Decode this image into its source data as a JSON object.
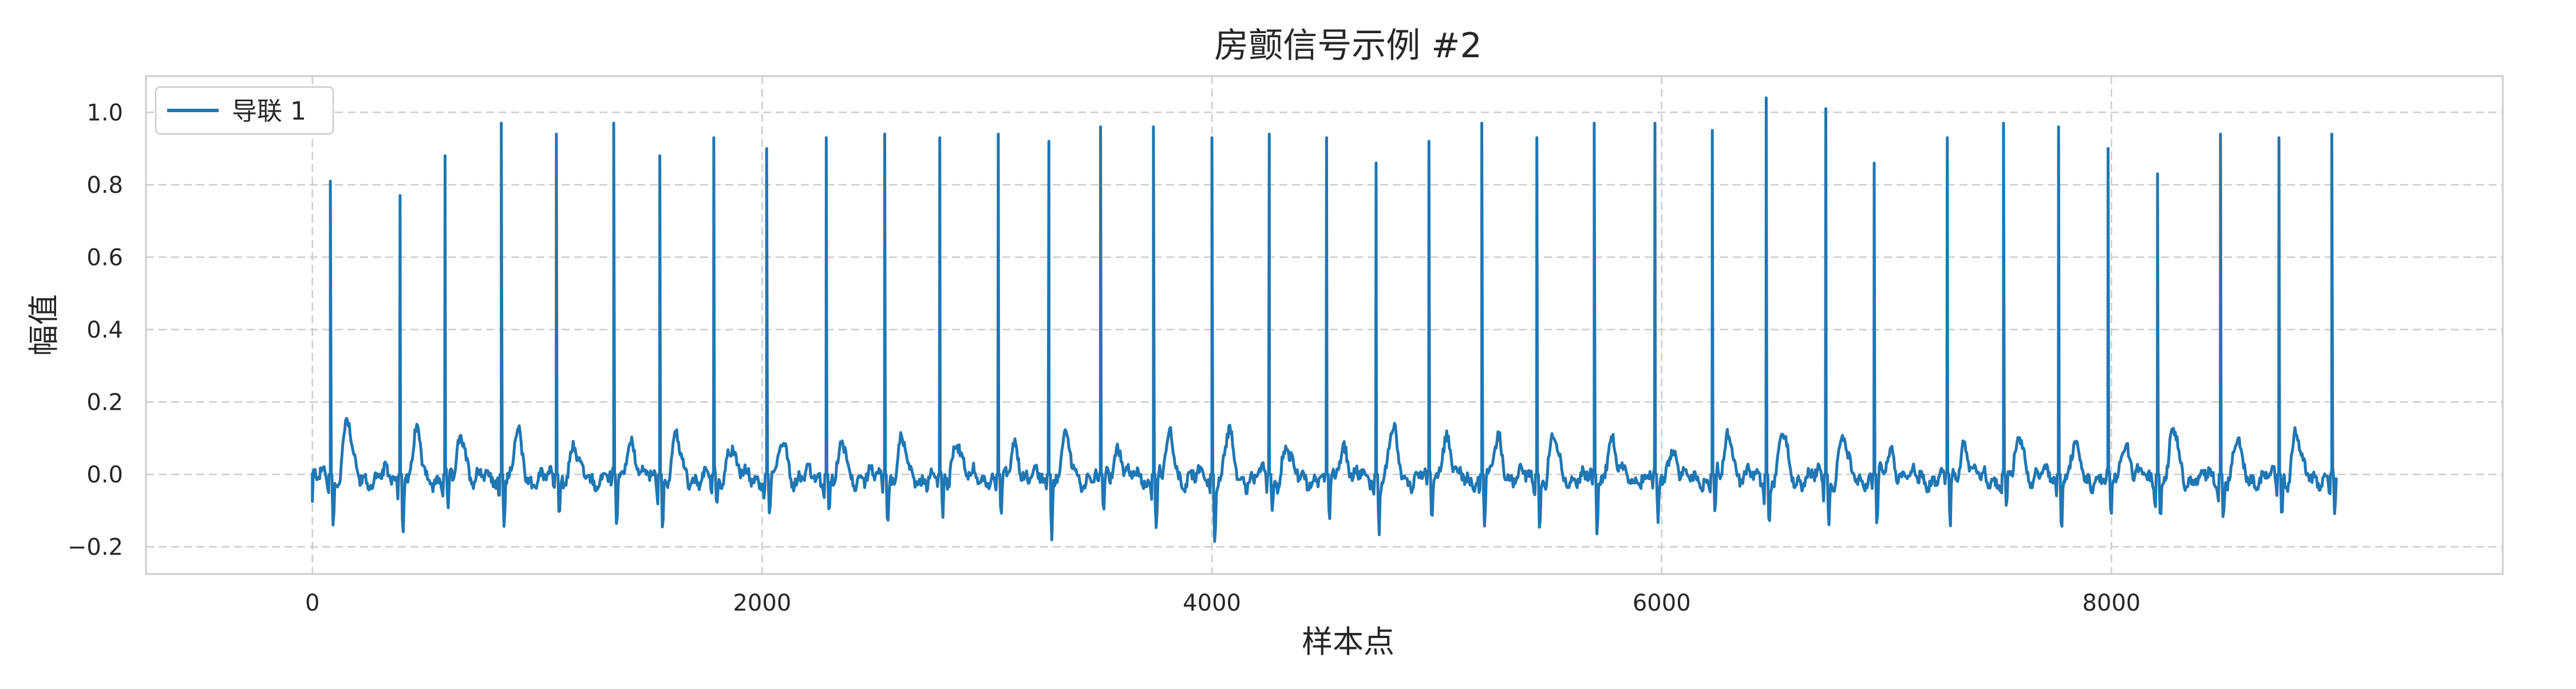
{
  "chart_data": {
    "type": "line",
    "title": "房颤信号示例 #2",
    "xlabel": "样本点",
    "ylabel": "幅值",
    "xlim": [
      -740,
      9740
    ],
    "ylim": [
      -0.275,
      1.1
    ],
    "xticks": [
      0,
      2000,
      4000,
      6000,
      8000
    ],
    "yticks": [
      -0.2,
      0.0,
      0.2,
      0.4,
      0.6,
      0.8,
      1.0
    ],
    "xtick_labels": [
      "0",
      "2000",
      "4000",
      "6000",
      "8000"
    ],
    "ytick_labels": [
      "−0.2",
      "0.0",
      "0.2",
      "0.4",
      "0.6",
      "0.8",
      "1.0"
    ],
    "grid": true,
    "grid_style": "dashed",
    "legend_position": "top-left",
    "series": [
      {
        "name": "导联 1",
        "color": "#1f77b4",
        "x_range": [
          0,
          9000
        ],
        "r_peaks": [
          {
            "x": 80,
            "amp": 0.81
          },
          {
            "x": 390,
            "amp": 0.77
          },
          {
            "x": 590,
            "amp": 0.88
          },
          {
            "x": 840,
            "amp": 0.97
          },
          {
            "x": 1085,
            "amp": 0.94
          },
          {
            "x": 1340,
            "amp": 0.97
          },
          {
            "x": 1545,
            "amp": 0.88
          },
          {
            "x": 1785,
            "amp": 0.93
          },
          {
            "x": 2020,
            "amp": 0.9
          },
          {
            "x": 2285,
            "amp": 0.93
          },
          {
            "x": 2545,
            "amp": 0.94
          },
          {
            "x": 2790,
            "amp": 0.93
          },
          {
            "x": 3050,
            "amp": 0.94
          },
          {
            "x": 3275,
            "amp": 0.92
          },
          {
            "x": 3505,
            "amp": 0.96
          },
          {
            "x": 3740,
            "amp": 0.96
          },
          {
            "x": 4000,
            "amp": 0.93
          },
          {
            "x": 4255,
            "amp": 0.94
          },
          {
            "x": 4510,
            "amp": 0.93
          },
          {
            "x": 4730,
            "amp": 0.86
          },
          {
            "x": 4965,
            "amp": 0.92
          },
          {
            "x": 5200,
            "amp": 0.97
          },
          {
            "x": 5445,
            "amp": 0.93
          },
          {
            "x": 5700,
            "amp": 0.97
          },
          {
            "x": 5970,
            "amp": 0.97
          },
          {
            "x": 6225,
            "amp": 0.95
          },
          {
            "x": 6465,
            "amp": 1.04
          },
          {
            "x": 6730,
            "amp": 1.01
          },
          {
            "x": 6945,
            "amp": 0.86
          },
          {
            "x": 7270,
            "amp": 0.93
          },
          {
            "x": 7520,
            "amp": 0.97
          },
          {
            "x": 7765,
            "amp": 0.96
          },
          {
            "x": 7985,
            "amp": 0.9
          },
          {
            "x": 8205,
            "amp": 0.83
          },
          {
            "x": 8485,
            "amp": 0.94
          },
          {
            "x": 8745,
            "amp": 0.93
          },
          {
            "x": 8980,
            "amp": 0.94
          }
        ],
        "trough_min": -0.21
      }
    ]
  },
  "colors": {
    "line": "#1f77b4",
    "grid": "#cccccc",
    "frame": "#cccccc",
    "text": "#262626"
  }
}
